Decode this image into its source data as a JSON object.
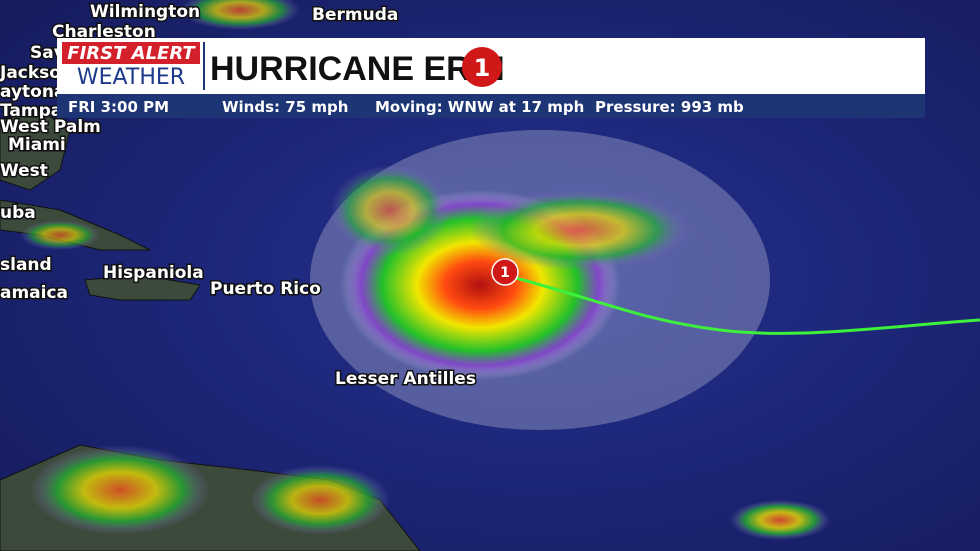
{
  "header": {
    "logo_top": "FIRST ALERT",
    "logo_bottom": "WEATHER",
    "title": "HURRICANE ERIN",
    "category": "1"
  },
  "info": [
    "FRI 3:00 PM",
    "Winds: 75 mph",
    "Moving: WNW at 17 mph",
    "Pressure:  993 mb"
  ],
  "map_labels": [
    "Wilmington",
    "Bermuda",
    "Charleston",
    "Sav",
    "Jackso",
    "aytona",
    "Tampa",
    "West Palm",
    "Miami",
    "West",
    "uba",
    "sland",
    "amaica",
    "Hispaniola",
    "Puerto Rico",
    "Lesser Antilles"
  ],
  "storm_marker": "1"
}
